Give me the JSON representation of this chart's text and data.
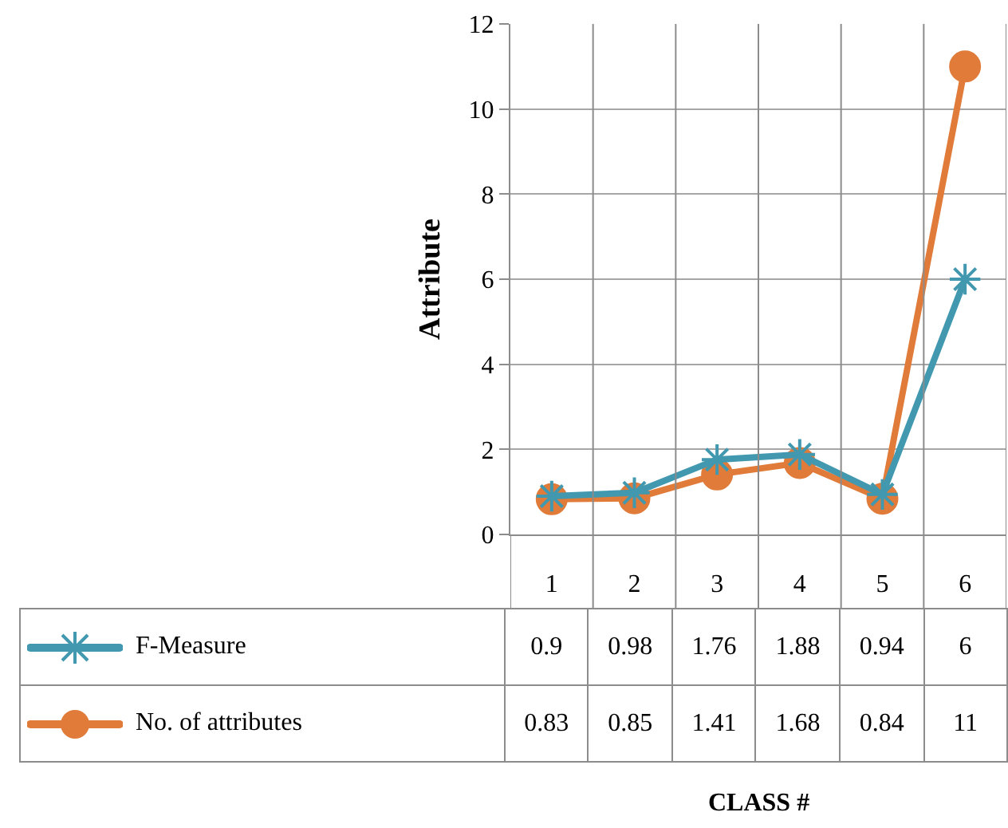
{
  "chart_data": {
    "type": "line",
    "annotations": [
      "CLASS #"
    ],
    "ylabel": "Attribute",
    "categories": [
      "1",
      "2",
      "3",
      "4",
      "5",
      "6"
    ],
    "series": [
      {
        "name": "F-Measure",
        "color": "#4198af",
        "marker": "cross",
        "values": [
          0.9,
          0.98,
          1.76,
          1.88,
          0.94,
          6
        ]
      },
      {
        "name": "No. of attributes",
        "color": "#e07b39",
        "marker": "circle",
        "values": [
          0.83,
          0.85,
          1.41,
          1.68,
          0.84,
          11
        ]
      }
    ],
    "ylim": [
      0,
      12
    ],
    "yticks": [
      0,
      2,
      4,
      6,
      8,
      10,
      12
    ],
    "grid": true,
    "legend": "bottom",
    "data_labels": true
  }
}
